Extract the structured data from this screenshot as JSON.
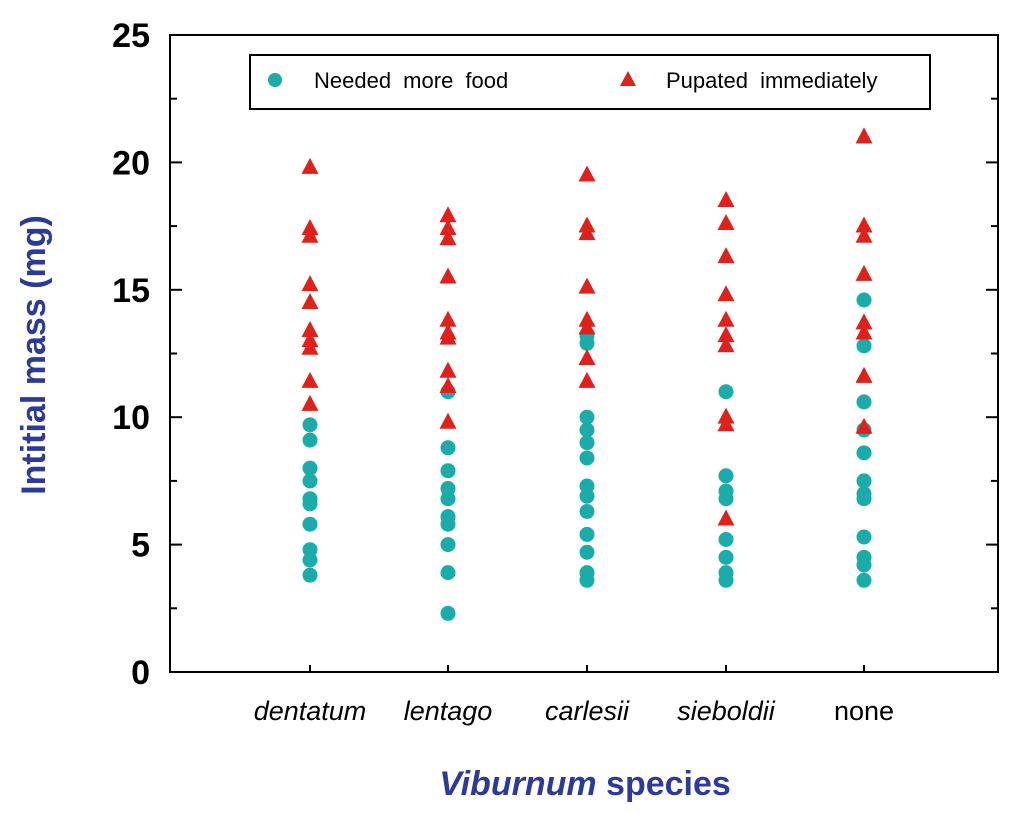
{
  "chart_data": {
    "type": "scatter",
    "title": "",
    "xlabel_italic": "Viburnum",
    "xlabel_rest": " species",
    "ylabel": "Intitial mass (mg)",
    "ylim": [
      0,
      25
    ],
    "yticks": [
      0,
      5,
      10,
      15,
      20,
      25
    ],
    "categories": [
      "dentatum",
      "lentago",
      "carlesii",
      "sieboldii",
      "none"
    ],
    "category_italic": [
      true,
      true,
      true,
      true,
      false
    ],
    "legend_position": "top",
    "colors": {
      "needed": "#1aabab",
      "pupated": "#e0201b",
      "axis_title": "#2e3a9a"
    },
    "series": [
      {
        "name": "Needed more food",
        "marker": "circle",
        "values": [
          [
            9.7,
            9.1,
            8.0,
            7.5,
            6.8,
            6.6,
            5.8,
            4.8,
            4.4,
            3.8
          ],
          [
            11.0,
            8.8,
            7.9,
            7.2,
            6.8,
            6.1,
            5.8,
            5.0,
            3.9,
            2.3
          ],
          [
            13.2,
            12.9,
            10.0,
            9.5,
            9.0,
            8.4,
            7.3,
            6.9,
            6.3,
            5.4,
            4.7,
            3.9,
            3.6
          ],
          [
            11.0,
            7.7,
            7.1,
            6.8,
            5.2,
            4.5,
            3.9,
            3.6
          ],
          [
            14.6,
            12.8,
            10.6,
            9.5,
            8.6,
            7.5,
            7.0,
            6.8,
            5.3,
            4.5,
            4.2,
            3.6
          ]
        ]
      },
      {
        "name": "Pupated immediately",
        "marker": "triangle",
        "values": [
          [
            19.8,
            17.4,
            17.1,
            15.2,
            14.5,
            13.4,
            13.0,
            12.7,
            11.4,
            10.5
          ],
          [
            17.9,
            17.4,
            17.0,
            15.5,
            13.8,
            13.3,
            13.1,
            11.8,
            11.2,
            9.8
          ],
          [
            19.5,
            17.5,
            17.2,
            15.1,
            13.8,
            13.5,
            12.3,
            11.4
          ],
          [
            18.5,
            17.6,
            16.3,
            14.8,
            13.8,
            13.2,
            12.8,
            10.0,
            9.7,
            6.0
          ],
          [
            21.0,
            17.5,
            17.1,
            15.6,
            13.7,
            13.3,
            11.6,
            9.6
          ]
        ]
      }
    ]
  }
}
